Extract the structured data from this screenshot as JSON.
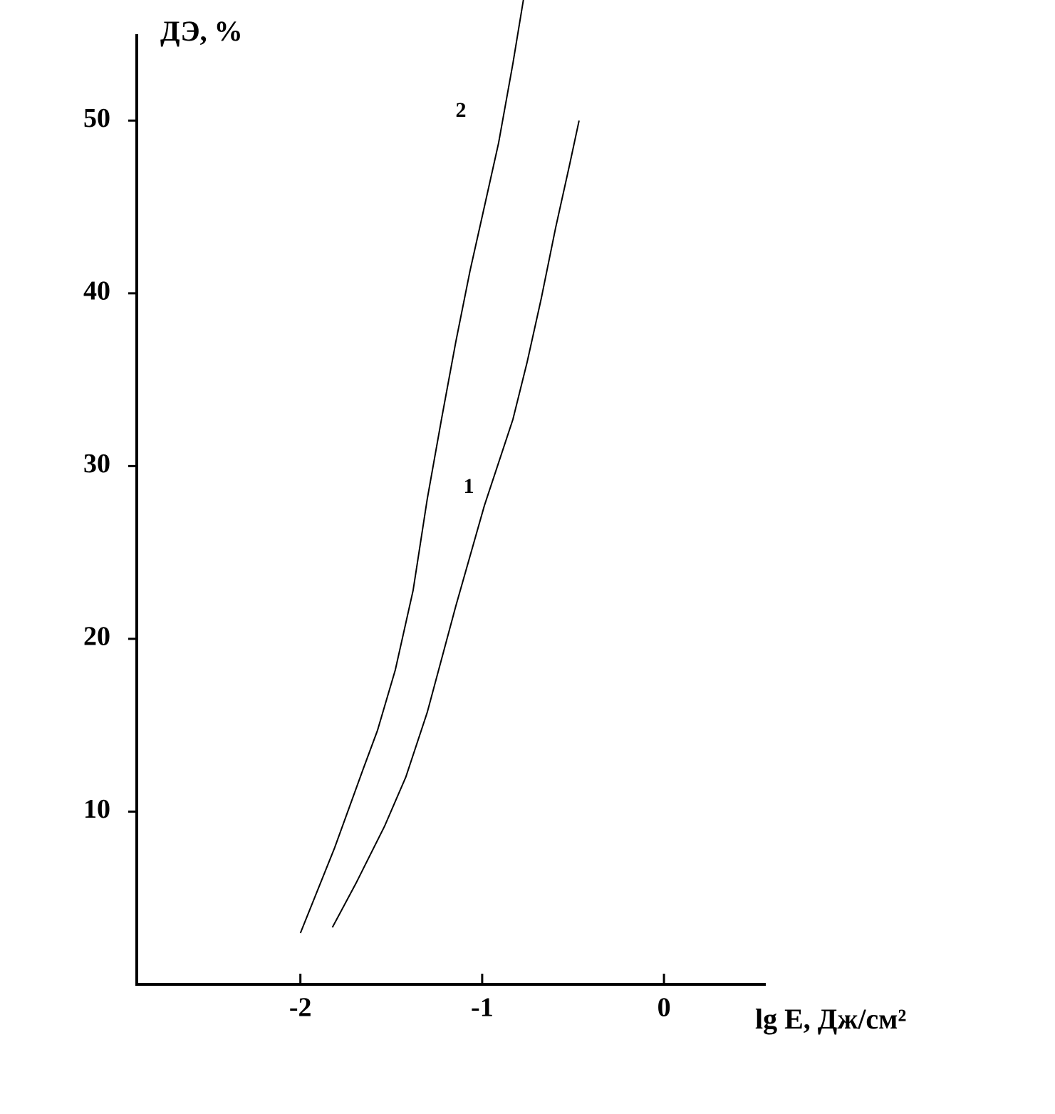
{
  "chart_data": {
    "type": "line",
    "title": "ДЭ, %",
    "x_label": "lg E, Дж/см²",
    "xlim": [
      -2.9,
      0.56
    ],
    "xticks": [
      -2,
      -1,
      0
    ],
    "ylim": [
      0,
      55
    ],
    "yticks": [
      10,
      20,
      30,
      40,
      50
    ],
    "grid": false,
    "series": [
      {
        "name": "1",
        "color": "#000000",
        "x": [
          -1.824,
          -1.694,
          -1.537,
          -1.42,
          -1.302,
          -1.145,
          -0.988,
          -0.831,
          -0.753,
          -0.675,
          -0.596,
          -0.518,
          -0.467
        ],
        "values": [
          3.3,
          5.86,
          9.15,
          12.0,
          15.75,
          21.9,
          27.7,
          32.7,
          36.0,
          39.7,
          43.8,
          47.5,
          50.0
        ]
      },
      {
        "name": "2",
        "color": "#000000",
        "x": [
          -2.0,
          -1.812,
          -1.655,
          -1.576,
          -1.478,
          -1.38,
          -1.302,
          -1.224,
          -1.145,
          -1.067,
          -0.988,
          -0.91,
          -0.831,
          -0.773
        ],
        "values": [
          2.97,
          7.9,
          12.45,
          14.7,
          18.2,
          22.8,
          28.1,
          32.7,
          37.2,
          41.3,
          45.0,
          48.7,
          53.3,
          57.0
        ]
      }
    ]
  }
}
